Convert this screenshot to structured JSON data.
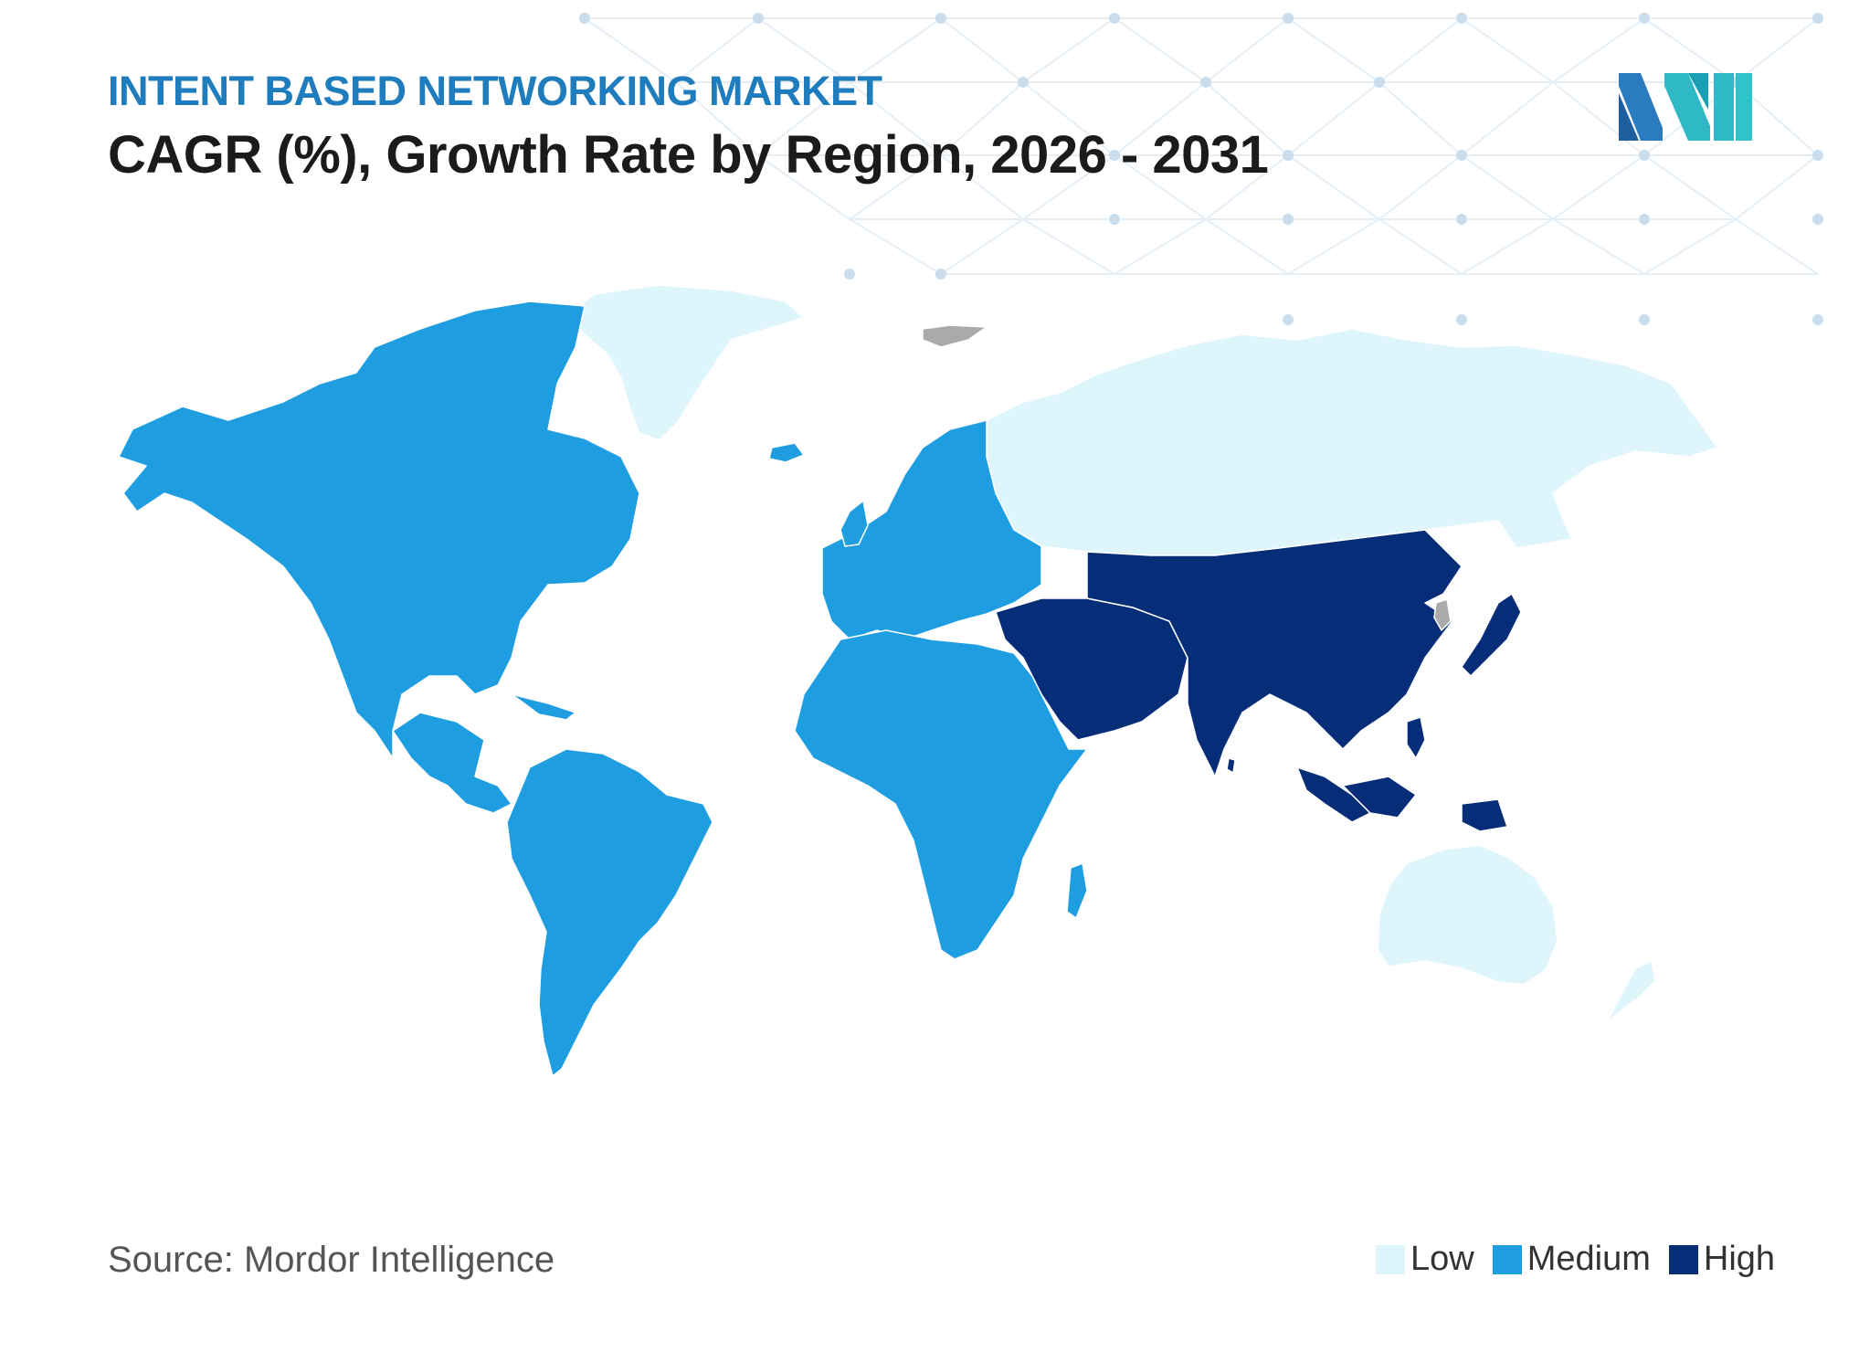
{
  "header": {
    "subtitle": "INTENT BASED NETWORKING MARKET",
    "title": "CAGR (%), Growth Rate by Region, 2026 - 2031"
  },
  "footer": {
    "source": "Source: Mordor Intelligence"
  },
  "legend": {
    "items": [
      {
        "label": "Low",
        "color": "#dff5fc"
      },
      {
        "label": "Medium",
        "color": "#1e9ee0"
      },
      {
        "label": "High",
        "color": "#062d78"
      }
    ]
  },
  "colors": {
    "no_data": "#aaaaaa",
    "background_network": "#d4e2ee"
  },
  "map_data": {
    "regions": [
      {
        "region": "North America",
        "level": "Medium"
      },
      {
        "region": "South America",
        "level": "Medium"
      },
      {
        "region": "Europe",
        "level": "Medium"
      },
      {
        "region": "Africa",
        "level": "Medium"
      },
      {
        "region": "Asia Pacific",
        "level": "High"
      },
      {
        "region": "Middle East",
        "level": "High"
      },
      {
        "region": "Russia",
        "level": "Low"
      },
      {
        "region": "Greenland",
        "level": "Low"
      },
      {
        "region": "Australia and New Zealand",
        "level": "Low"
      }
    ]
  }
}
